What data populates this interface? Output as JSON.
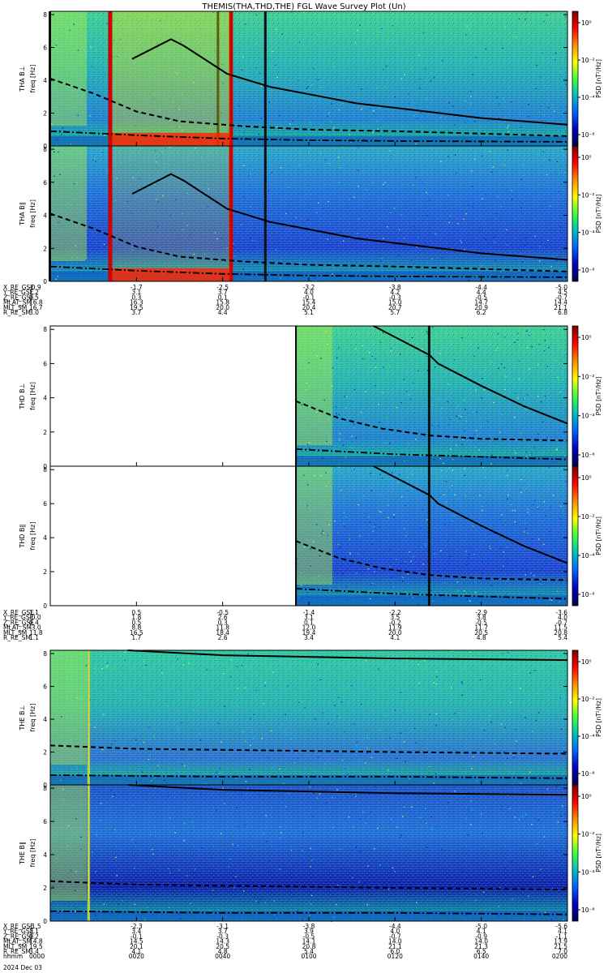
{
  "title": "THEMIS(THA,THD,THE) FGL Wave Survey Plot (Un)",
  "date_label": "2024 Dec 03",
  "colorbar": {
    "label": "PSD [nT²/Hz]",
    "ticks": [
      "10⁰",
      "10⁻²",
      "10⁻⁴",
      "10⁻⁶"
    ],
    "colors": [
      "#7b0000",
      "#ff0000",
      "#ff8c00",
      "#ffff00",
      "#40ff40",
      "#00c0c0",
      "#0060ff",
      "#0000c0",
      "#00004a"
    ]
  },
  "panels": [
    {
      "id": "tha-bl",
      "ylabel1": "THA B⊥",
      "ylabel2": "freq [Hz]"
    },
    {
      "id": "tha-bll",
      "ylabel1": "THA B∥",
      "ylabel2": "freq [Hz]"
    },
    {
      "id": "thd-bl",
      "ylabel1": "THD B⊥",
      "ylabel2": "freq [Hz]"
    },
    {
      "id": "thd-bll",
      "ylabel1": "THD B∥",
      "ylabel2": "freq [Hz]"
    },
    {
      "id": "the-bl",
      "ylabel1": "THE B⊥",
      "ylabel2": "freq [Hz]"
    },
    {
      "id": "the-bll",
      "ylabel1": "THE B∥",
      "ylabel2": "freq [Hz]"
    }
  ],
  "ephemeris": [
    {
      "rows": [
        {
          "name": "X_RE_GSE",
          "values": [
            "-0.9",
            "-1.7",
            "-2.5",
            "-3.2",
            "-3.8",
            "-4.4",
            "-5.0"
          ]
        },
        {
          "name": "Y_RE_GSE",
          "values": [
            "1.2",
            "3.1",
            "3.7",
            "4.0",
            "4.2",
            "4.4",
            "4.5"
          ]
        },
        {
          "name": "Z_RE_GSE",
          "values": [
            "0.5",
            "0.3",
            "0.1",
            "-0.1",
            "-0.3",
            "-0.5",
            "-0.7"
          ]
        },
        {
          "name": "MLAT_SM",
          "values": [
            "16.8",
            "16.3",
            "15.8",
            "15.4",
            "15.0",
            "14.7",
            "14.4"
          ]
        },
        {
          "name": "MLT_SM",
          "values": [
            "16.7",
            "19.5",
            "20.0",
            "20.4",
            "20.7",
            "20.9",
            "21.1"
          ]
        },
        {
          "name": "R_RE_SM",
          "values": [
            "3.0",
            "3.7",
            "4.4",
            "5.1",
            "5.7",
            "6.2",
            "6.8"
          ]
        }
      ]
    },
    {
      "rows": [
        {
          "name": "X_RE_GSE",
          "values": [
            "1.1",
            "0.5",
            "-0.5",
            "-1.4",
            "-2.2",
            "-2.9",
            "-3.6"
          ]
        },
        {
          "name": "Y_RE_GSE",
          "values": [
            "-0.0",
            "1.8",
            "2.6",
            "3.1",
            "3.5",
            "3.8",
            "4.0"
          ]
        },
        {
          "name": "Z_RE_GSE",
          "values": [
            "0.4",
            "0.5",
            "0.3",
            "0.1",
            "-0.2",
            "-0.5",
            "-0.7"
          ]
        },
        {
          "name": "MLAT_SM",
          "values": [
            "-3.0",
            "8.8",
            "11.8",
            "12.0",
            "11.9",
            "11.7",
            "11.5"
          ]
        },
        {
          "name": "MLT_SM",
          "values": [
            "11.8",
            "16.5",
            "18.4",
            "19.4",
            "20.0",
            "20.5",
            "20.8"
          ]
        },
        {
          "name": "R_RE_SM",
          "values": [
            "1.1",
            "1.7",
            "2.6",
            "3.4",
            "4.1",
            "4.8",
            "5.4"
          ]
        }
      ]
    },
    {
      "rows": [
        {
          "name": "X_RE_GSE",
          "values": [
            "-1.5",
            "-2.3",
            "-3.1",
            "-3.8",
            "-4.4",
            "-5.0",
            "-5.6"
          ]
        },
        {
          "name": "Y_RE_GSE",
          "values": [
            "3.1",
            "3.4",
            "3.7",
            "3.9",
            "4.0",
            "4.1",
            "4.1"
          ]
        },
        {
          "name": "Z_RE_GSE",
          "values": [
            "0.2",
            "-0.1",
            "-0.3",
            "-0.5",
            "-0.7",
            "-0.9",
            "-1.1"
          ]
        },
        {
          "name": "MLAT_SM",
          "values": [
            "14.8",
            "14.5",
            "14.3",
            "14.1",
            "14.0",
            "14.0",
            "13.9"
          ]
        },
        {
          "name": "MLT_SM",
          "values": [
            "19.5",
            "20.1",
            "20.5",
            "20.8",
            "21.1",
            "21.3",
            "21.5"
          ]
        },
        {
          "name": "R_RE_SM",
          "values": [
            "3.4",
            "4.1",
            "4.8",
            "5.4",
            "6.0",
            "6.5",
            "7.0"
          ]
        },
        {
          "name": "hhmm",
          "values": [
            "0000",
            "0020",
            "0040",
            "0100",
            "0120",
            "0140",
            "0200"
          ]
        }
      ]
    }
  ],
  "chart_data": {
    "type": "heatmap",
    "title": "THEMIS(THA,THD,THE) FGL Wave Survey Plot (Un)",
    "x": {
      "label": "hhmm",
      "ticks": [
        "0000",
        "0020",
        "0040",
        "0100",
        "0120",
        "0140",
        "0200"
      ],
      "range_minutes": [
        0,
        120
      ]
    },
    "y": {
      "label": "freq [Hz]",
      "ticks": [
        0,
        2,
        4,
        6,
        8
      ],
      "range": [
        0,
        8.2
      ]
    },
    "colorbar": {
      "label": "PSD [nT²/Hz]",
      "scale": "log",
      "range_log10": [
        -7,
        1
      ]
    },
    "series": [
      {
        "name": "THA B⊥",
        "spikes_minutes": [
          0,
          14,
          39,
          42,
          50
        ],
        "overlay_upper": [
          [
            19,
            5.3
          ],
          [
            28,
            6.5
          ],
          [
            31,
            6.1
          ],
          [
            41,
            4.4
          ],
          [
            51,
            3.6
          ],
          [
            61,
            3.1
          ],
          [
            71,
            2.6
          ],
          [
            84,
            2.2
          ],
          [
            100,
            1.7
          ],
          [
            120,
            1.3
          ]
        ],
        "overlay_dashed": [
          [
            0,
            4.1
          ],
          [
            10,
            3.2
          ],
          [
            20,
            2.1
          ],
          [
            30,
            1.5
          ],
          [
            45,
            1.2
          ],
          [
            60,
            1.0
          ],
          [
            80,
            0.9
          ],
          [
            100,
            0.75
          ],
          [
            120,
            0.6
          ]
        ],
        "overlay_dashdot": [
          [
            0,
            0.9
          ],
          [
            20,
            0.65
          ],
          [
            40,
            0.45
          ],
          [
            60,
            0.35
          ],
          [
            80,
            0.3
          ],
          [
            120,
            0.25
          ]
        ]
      },
      {
        "name": "THA B∥",
        "spikes_minutes": [
          0,
          14,
          42,
          50
        ],
        "overlay_upper": [
          [
            19,
            5.3
          ],
          [
            28,
            6.5
          ],
          [
            31,
            6.1
          ],
          [
            41,
            4.4
          ],
          [
            51,
            3.6
          ],
          [
            61,
            3.1
          ],
          [
            71,
            2.6
          ],
          [
            84,
            2.2
          ],
          [
            100,
            1.7
          ],
          [
            120,
            1.3
          ]
        ],
        "overlay_dashed": [
          [
            0,
            4.1
          ],
          [
            10,
            3.2
          ],
          [
            20,
            2.1
          ],
          [
            30,
            1.5
          ],
          [
            45,
            1.2
          ],
          [
            60,
            1.0
          ],
          [
            80,
            0.9
          ],
          [
            100,
            0.75
          ],
          [
            120,
            0.6
          ]
        ],
        "overlay_dashdot": [
          [
            0,
            0.9
          ],
          [
            20,
            0.65
          ],
          [
            40,
            0.45
          ],
          [
            60,
            0.35
          ],
          [
            80,
            0.3
          ],
          [
            120,
            0.25
          ]
        ]
      },
      {
        "name": "THD B⊥",
        "data_start_minutes": 57,
        "spikes_minutes": [
          88
        ],
        "overlay_upper": [
          [
            75,
            8.2
          ],
          [
            88,
            6.5
          ],
          [
            90,
            6.0
          ],
          [
            100,
            4.7
          ],
          [
            110,
            3.5
          ],
          [
            120,
            2.5
          ]
        ],
        "overlay_dashed": [
          [
            57,
            3.8
          ],
          [
            67,
            2.8
          ],
          [
            77,
            2.2
          ],
          [
            88,
            1.8
          ],
          [
            100,
            1.6
          ],
          [
            120,
            1.5
          ]
        ],
        "overlay_dashdot": [
          [
            57,
            1.0
          ],
          [
            80,
            0.7
          ],
          [
            100,
            0.55
          ],
          [
            120,
            0.4
          ]
        ]
      },
      {
        "name": "THD B∥",
        "data_start_minutes": 57,
        "spikes_minutes": [
          88
        ],
        "overlay_upper": [
          [
            75,
            8.2
          ],
          [
            88,
            6.5
          ],
          [
            90,
            6.0
          ],
          [
            100,
            4.7
          ],
          [
            110,
            3.5
          ],
          [
            120,
            2.5
          ]
        ],
        "overlay_dashed": [
          [
            57,
            3.8
          ],
          [
            67,
            2.8
          ],
          [
            77,
            2.2
          ],
          [
            88,
            1.8
          ],
          [
            100,
            1.6
          ],
          [
            120,
            1.5
          ]
        ],
        "overlay_dashdot": [
          [
            57,
            1.0
          ],
          [
            80,
            0.7
          ],
          [
            100,
            0.55
          ],
          [
            120,
            0.4
          ]
        ]
      },
      {
        "name": "THE B⊥",
        "spikes_minutes": [
          9
        ],
        "overlay_upper": [
          [
            18,
            8.2
          ],
          [
            40,
            7.9
          ],
          [
            80,
            7.7
          ],
          [
            120,
            7.6
          ]
        ],
        "overlay_dashed": [
          [
            0,
            2.4
          ],
          [
            20,
            2.2
          ],
          [
            50,
            2.1
          ],
          [
            80,
            2.0
          ],
          [
            120,
            1.9
          ]
        ],
        "overlay_dashdot": [
          [
            0,
            0.6
          ],
          [
            40,
            0.5
          ],
          [
            80,
            0.5
          ],
          [
            120,
            0.4
          ]
        ]
      },
      {
        "name": "THE B∥",
        "spikes_minutes": [
          9
        ],
        "overlay_upper": [
          [
            18,
            8.2
          ],
          [
            40,
            7.9
          ],
          [
            80,
            7.7
          ],
          [
            120,
            7.6
          ]
        ],
        "overlay_dashed": [
          [
            0,
            2.4
          ],
          [
            20,
            2.2
          ],
          [
            50,
            2.1
          ],
          [
            80,
            2.0
          ],
          [
            120,
            1.9
          ]
        ],
        "overlay_dashdot": [
          [
            0,
            0.6
          ],
          [
            40,
            0.5
          ],
          [
            80,
            0.5
          ],
          [
            120,
            0.4
          ]
        ]
      }
    ]
  }
}
